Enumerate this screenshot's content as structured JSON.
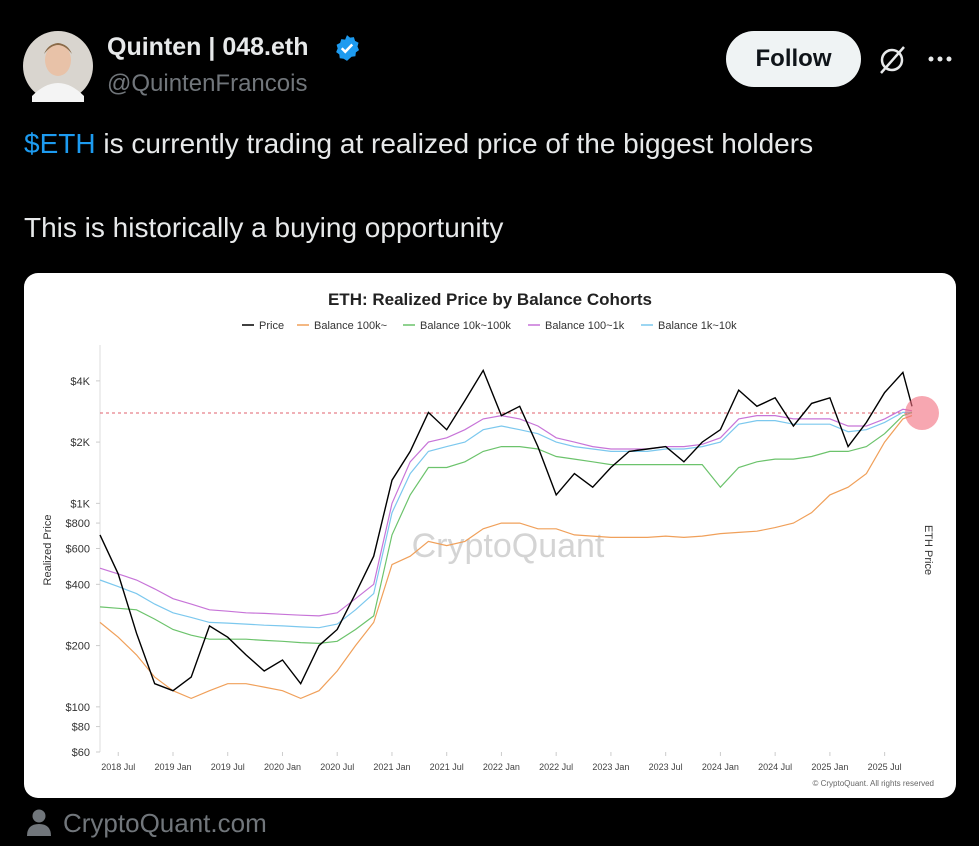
{
  "tweet": {
    "author": "Quinten | 048.eth",
    "handle": "@QuintenFrancois",
    "follow": "Follow",
    "cashtag": "$ETH",
    "line1": "is currently trading at realized price of the biggest holders",
    "line2": "This is historically a buying opportunity",
    "source": "CryptoQuant.com"
  },
  "chart_data": {
    "type": "line",
    "title": "ETH: Realized Price by Balance Cohorts",
    "y_label": "Realized Price",
    "y2_label": "ETH Price",
    "watermark": "CryptoQuant",
    "copyright": "© CryptoQuant. All rights reserved",
    "log_scale": true,
    "grid": false,
    "legend": "top",
    "x": [
      "2018-05",
      "2018-07",
      "2018-09",
      "2018-11",
      "2019-01",
      "2019-03",
      "2019-05",
      "2019-07",
      "2019-09",
      "2019-11",
      "2020-01",
      "2020-03",
      "2020-05",
      "2020-07",
      "2020-09",
      "2020-11",
      "2021-01",
      "2021-03",
      "2021-05",
      "2021-07",
      "2021-09",
      "2021-11",
      "2022-01",
      "2022-03",
      "2022-05",
      "2022-07",
      "2022-09",
      "2022-11",
      "2023-01",
      "2023-03",
      "2023-05",
      "2023-07",
      "2023-09",
      "2023-11",
      "2024-01",
      "2024-03",
      "2024-05",
      "2024-07",
      "2024-09",
      "2024-11",
      "2025-01",
      "2025-03",
      "2025-05",
      "2025-07",
      "2025-09",
      "2025-10"
    ],
    "xlim": [
      "2018-05",
      "2025-10"
    ],
    "xticks": [
      {
        "value": "2018-07",
        "label": "2018 Jul"
      },
      {
        "value": "2019-01",
        "label": "2019 Jan"
      },
      {
        "value": "2019-07",
        "label": "2019 Jul"
      },
      {
        "value": "2020-01",
        "label": "2020 Jan"
      },
      {
        "value": "2020-07",
        "label": "2020 Jul"
      },
      {
        "value": "2021-01",
        "label": "2021 Jan"
      },
      {
        "value": "2021-07",
        "label": "2021 Jul"
      },
      {
        "value": "2022-01",
        "label": "2022 Jan"
      },
      {
        "value": "2022-07",
        "label": "2022 Jul"
      },
      {
        "value": "2023-01",
        "label": "2023 Jan"
      },
      {
        "value": "2023-07",
        "label": "2023 Jul"
      },
      {
        "value": "2024-01",
        "label": "2024 Jan"
      },
      {
        "value": "2024-07",
        "label": "2024 Jul"
      },
      {
        "value": "2025-01",
        "label": "2025 Jan"
      },
      {
        "value": "2025-07",
        "label": "2025 Jul"
      }
    ],
    "ylim": [
      60,
      6000
    ],
    "yticks": [
      {
        "value": 60,
        "label": "$60"
      },
      {
        "value": 80,
        "label": "$80"
      },
      {
        "value": 100,
        "label": "$100"
      },
      {
        "value": 200,
        "label": "$200"
      },
      {
        "value": 400,
        "label": "$400"
      },
      {
        "value": 600,
        "label": "$600"
      },
      {
        "value": 800,
        "label": "$800"
      },
      {
        "value": 1000,
        "label": "$1K"
      },
      {
        "value": 2000,
        "label": "$2K"
      },
      {
        "value": 4000,
        "label": "$4K"
      }
    ],
    "hline": 2780,
    "hline_color": "#e0606e",
    "series": [
      {
        "name": "Price",
        "color": "#000000",
        "values": [
          700,
          450,
          230,
          130,
          120,
          140,
          250,
          220,
          180,
          150,
          170,
          130,
          200,
          240,
          360,
          550,
          1300,
          1800,
          2800,
          2300,
          3200,
          4500,
          2700,
          3000,
          1900,
          1100,
          1400,
          1200,
          1500,
          1800,
          1850,
          1900,
          1600,
          2000,
          2300,
          3600,
          3000,
          3300,
          2400,
          3100,
          3300,
          1900,
          2500,
          3500,
          4400,
          3000
        ]
      },
      {
        "name": "Balance 100k~",
        "color": "#f0a05a",
        "values": [
          260,
          220,
          180,
          140,
          120,
          110,
          120,
          130,
          130,
          125,
          120,
          110,
          120,
          150,
          200,
          260,
          500,
          550,
          650,
          620,
          650,
          750,
          800,
          800,
          750,
          750,
          700,
          690,
          680,
          680,
          680,
          690,
          680,
          690,
          710,
          720,
          730,
          760,
          800,
          900,
          1100,
          1200,
          1400,
          2000,
          2600,
          2700
        ]
      },
      {
        "name": "Balance 10k~100k",
        "color": "#6cc36c",
        "values": [
          310,
          305,
          300,
          270,
          240,
          225,
          215,
          215,
          215,
          212,
          210,
          207,
          205,
          210,
          240,
          280,
          700,
          1100,
          1500,
          1500,
          1600,
          1800,
          1900,
          1900,
          1850,
          1700,
          1650,
          1600,
          1550,
          1550,
          1550,
          1550,
          1550,
          1550,
          1200,
          1500,
          1600,
          1650,
          1650,
          1700,
          1800,
          1800,
          1900,
          2200,
          2700,
          2800
        ]
      },
      {
        "name": "Balance 100~1k",
        "color": "#c774d8",
        "values": [
          480,
          450,
          420,
          380,
          340,
          320,
          300,
          295,
          290,
          288,
          285,
          282,
          280,
          290,
          340,
          400,
          1000,
          1600,
          2000,
          2100,
          2300,
          2600,
          2700,
          2600,
          2400,
          2100,
          2000,
          1900,
          1850,
          1850,
          1850,
          1900,
          1900,
          1950,
          2100,
          2600,
          2700,
          2700,
          2600,
          2600,
          2600,
          2400,
          2400,
          2600,
          2900,
          2850
        ]
      },
      {
        "name": "Balance 1k~10k",
        "color": "#7cc8ee",
        "values": [
          420,
          390,
          360,
          320,
          290,
          275,
          260,
          258,
          255,
          252,
          250,
          247,
          245,
          255,
          300,
          360,
          900,
          1400,
          1800,
          1900,
          2000,
          2300,
          2400,
          2300,
          2200,
          2000,
          1900,
          1850,
          1800,
          1800,
          1800,
          1850,
          1850,
          1900,
          2000,
          2450,
          2550,
          2550,
          2450,
          2450,
          2450,
          2250,
          2300,
          2500,
          2800,
          2800
        ]
      }
    ]
  }
}
